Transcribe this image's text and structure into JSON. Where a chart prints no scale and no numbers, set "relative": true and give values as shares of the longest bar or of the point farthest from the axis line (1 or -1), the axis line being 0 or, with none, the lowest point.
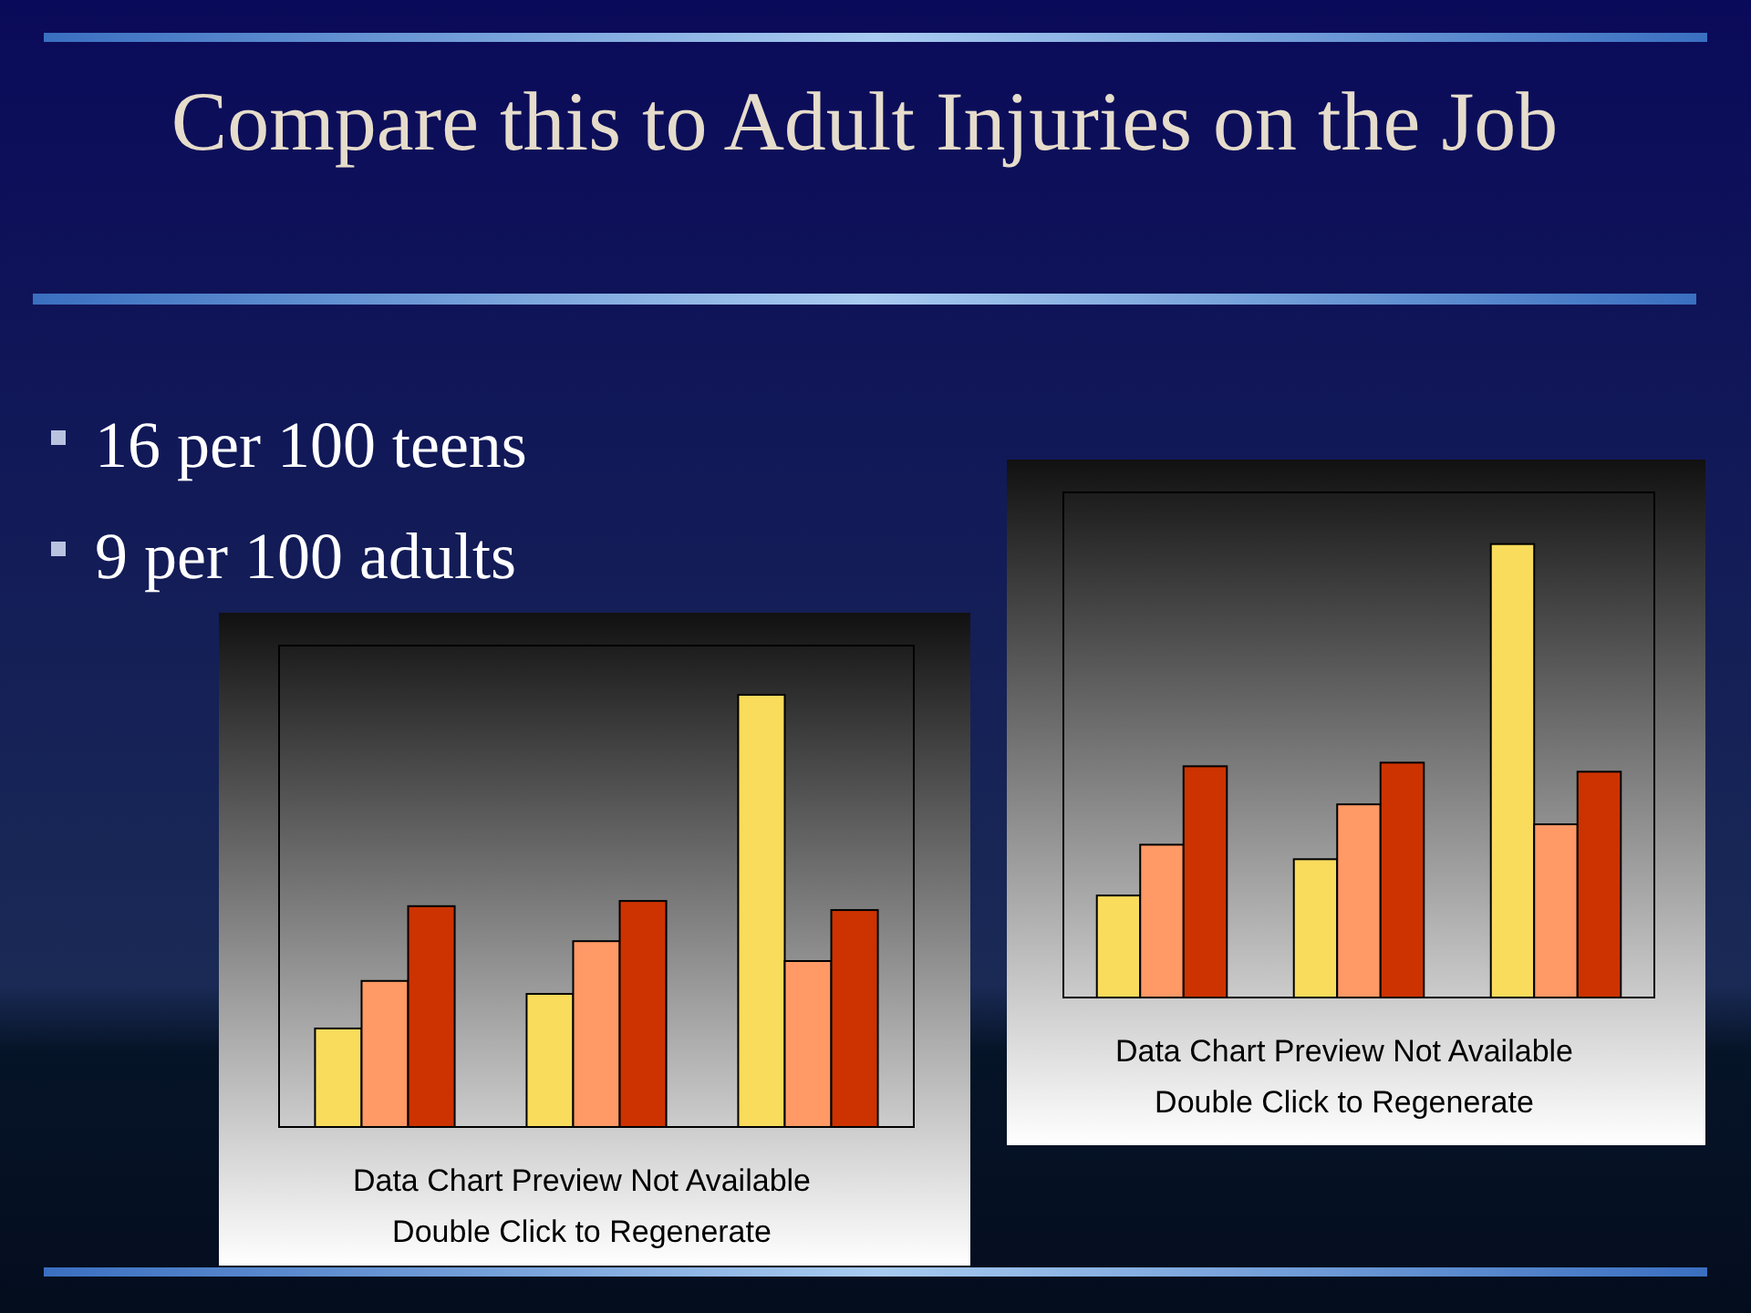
{
  "chart_data": [
    {
      "type": "bar",
      "title": "Compare this to Adult Injuries on the Job",
      "relative": true,
      "categories": [
        null,
        null,
        null
      ],
      "annotations": [
        "16 per 100 teens",
        "9 per 100 adults",
        "Data Chart Preview Not Available",
        "Double Click to Regenerate"
      ],
      "series": [
        {
          "color": "#f9dc5c",
          "values": [
            0.228,
            0.308,
            1
          ]
        },
        {
          "color": "#ff9966",
          "values": [
            0.338,
            0.43,
            0.384
          ]
        },
        {
          "color": "#cc3300",
          "values": [
            0.511,
            0.523,
            0.502
          ]
        }
      ]
    },
    {
      "type": "bar",
      "relative": true,
      "categories": [
        null,
        null,
        null
      ],
      "annotations": [
        "Data Chart Preview Not Available",
        "Double Click to Regenerate"
      ],
      "series": [
        {
          "color": "#f9dc5c",
          "values": [
            0.225,
            0.305,
            1
          ]
        },
        {
          "color": "#ff9966",
          "values": [
            0.337,
            0.426,
            0.382
          ]
        },
        {
          "color": "#cc3300",
          "values": [
            0.51,
            0.518,
            0.498
          ]
        }
      ]
    }
  ]
}
